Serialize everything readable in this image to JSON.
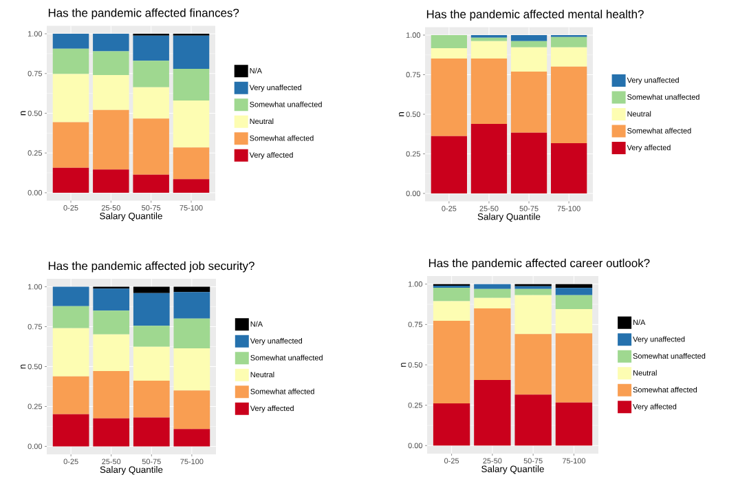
{
  "chart_data": [
    {
      "type": "bar",
      "title": "Has the pandemic affected finances?",
      "xlabel": "Salary Quantile",
      "ylabel": "n",
      "categories": [
        "0-25",
        "25-50",
        "50-75",
        "75-100"
      ],
      "stacked": true,
      "ylim": [
        -0.05,
        1.05
      ],
      "yticks": [
        {
          "value": 0,
          "label": "0.00"
        },
        {
          "value": 0.25,
          "label": "0.25"
        },
        {
          "value": 0.5,
          "label": "0.50"
        },
        {
          "value": 0.75,
          "label": "0.75"
        },
        {
          "value": 1,
          "label": "1.00"
        }
      ],
      "grid": true,
      "legend": "right",
      "series": [
        {
          "name": "Very affected",
          "color": "#ca001c",
          "values": [
            0.157,
            0.146,
            0.113,
            0.085
          ]
        },
        {
          "name": "Somewhat affected",
          "color": "#f99e52",
          "values": [
            0.287,
            0.375,
            0.353,
            0.199
          ]
        },
        {
          "name": "Neutral",
          "color": "#fdfdb2",
          "values": [
            0.303,
            0.219,
            0.198,
            0.296
          ]
        },
        {
          "name": "Somewhat unaffected",
          "color": "#9fd890",
          "values": [
            0.159,
            0.15,
            0.166,
            0.199
          ]
        },
        {
          "name": "Very unaffected",
          "color": "#2571ad",
          "values": [
            0.094,
            0.11,
            0.158,
            0.209
          ]
        },
        {
          "name": "N/A",
          "color": "#000000",
          "values": [
            0,
            0,
            0.012,
            0.012
          ]
        }
      ]
    },
    {
      "type": "bar",
      "title": "Has the pandemic affected mental health?",
      "xlabel": "Salary Quantile",
      "ylabel": "n",
      "categories": [
        "0-25",
        "25-50",
        "50-75",
        "75-100"
      ],
      "stacked": true,
      "ylim": [
        -0.05,
        1.05
      ],
      "yticks": [
        {
          "value": 0,
          "label": "0.00"
        },
        {
          "value": 0.25,
          "label": "0.25"
        },
        {
          "value": 0.5,
          "label": "0.50"
        },
        {
          "value": 0.75,
          "label": "0.75"
        },
        {
          "value": 1,
          "label": "1.00"
        }
      ],
      "grid": true,
      "legend": "right",
      "series": [
        {
          "name": "Very affected",
          "color": "#ca001c",
          "values": [
            0.362,
            0.439,
            0.384,
            0.317
          ]
        },
        {
          "name": "Somewhat affected",
          "color": "#f99e52",
          "values": [
            0.49,
            0.413,
            0.386,
            0.484
          ]
        },
        {
          "name": "Neutral",
          "color": "#fdfdb2",
          "values": [
            0.065,
            0.11,
            0.153,
            0.122
          ]
        },
        {
          "name": "Somewhat unaffected",
          "color": "#9fd890",
          "values": [
            0.083,
            0.022,
            0.039,
            0.065
          ]
        },
        {
          "name": "Very unaffected",
          "color": "#2571ad",
          "values": [
            0,
            0.016,
            0.038,
            0.012
          ]
        }
      ]
    },
    {
      "type": "bar",
      "title": "Has the pandemic affected job security?",
      "xlabel": "Salary Quantile",
      "ylabel": "n",
      "categories": [
        "0-25",
        "25-50",
        "50-75",
        "75-100"
      ],
      "stacked": true,
      "ylim": [
        -0.05,
        1.05
      ],
      "yticks": [
        {
          "value": 0,
          "label": "0.00"
        },
        {
          "value": 0.25,
          "label": "0.25"
        },
        {
          "value": 0.5,
          "label": "0.50"
        },
        {
          "value": 0.75,
          "label": "0.75"
        },
        {
          "value": 1,
          "label": "1.00"
        }
      ],
      "grid": true,
      "legend": "right",
      "series": [
        {
          "name": "Very affected",
          "color": "#ca001c",
          "values": [
            0.201,
            0.175,
            0.181,
            0.108
          ]
        },
        {
          "name": "Somewhat affected",
          "color": "#f99e52",
          "values": [
            0.238,
            0.297,
            0.231,
            0.242
          ]
        },
        {
          "name": "Neutral",
          "color": "#fdfdb2",
          "values": [
            0.301,
            0.23,
            0.212,
            0.264
          ]
        },
        {
          "name": "Somewhat unaffected",
          "color": "#9fd890",
          "values": [
            0.138,
            0.149,
            0.132,
            0.187
          ]
        },
        {
          "name": "Very unaffected",
          "color": "#2571ad",
          "values": [
            0.122,
            0.138,
            0.205,
            0.166
          ]
        },
        {
          "name": "N/A",
          "color": "#000000",
          "values": [
            0,
            0.011,
            0.039,
            0.033
          ]
        }
      ]
    },
    {
      "type": "bar",
      "title": "Has the pandemic affected career outlook?",
      "xlabel": "Salary Quantile",
      "ylabel": "n",
      "categories": [
        "0-25",
        "25-50",
        "50-75",
        "75-100"
      ],
      "stacked": true,
      "ylim": [
        -0.05,
        1.05
      ],
      "yticks": [
        {
          "value": 0,
          "label": "0.00"
        },
        {
          "value": 0.25,
          "label": "0.25"
        },
        {
          "value": 0.5,
          "label": "0.50"
        },
        {
          "value": 0.75,
          "label": "0.75"
        },
        {
          "value": 1,
          "label": "1.00"
        }
      ],
      "grid": true,
      "legend": "right",
      "series": [
        {
          "name": "Very affected",
          "color": "#ca001c",
          "values": [
            0.261,
            0.406,
            0.316,
            0.267
          ]
        },
        {
          "name": "Somewhat affected",
          "color": "#f99e52",
          "values": [
            0.512,
            0.444,
            0.375,
            0.428
          ]
        },
        {
          "name": "Neutral",
          "color": "#fdfdb2",
          "values": [
            0.121,
            0.065,
            0.241,
            0.15
          ]
        },
        {
          "name": "Somewhat unaffected",
          "color": "#9fd890",
          "values": [
            0.084,
            0.055,
            0.038,
            0.087
          ]
        },
        {
          "name": "Very unaffected",
          "color": "#2571ad",
          "values": [
            0.012,
            0.03,
            0.017,
            0.044
          ]
        },
        {
          "name": "N/A",
          "color": "#000000",
          "values": [
            0.01,
            0,
            0.013,
            0.024
          ]
        }
      ]
    }
  ]
}
